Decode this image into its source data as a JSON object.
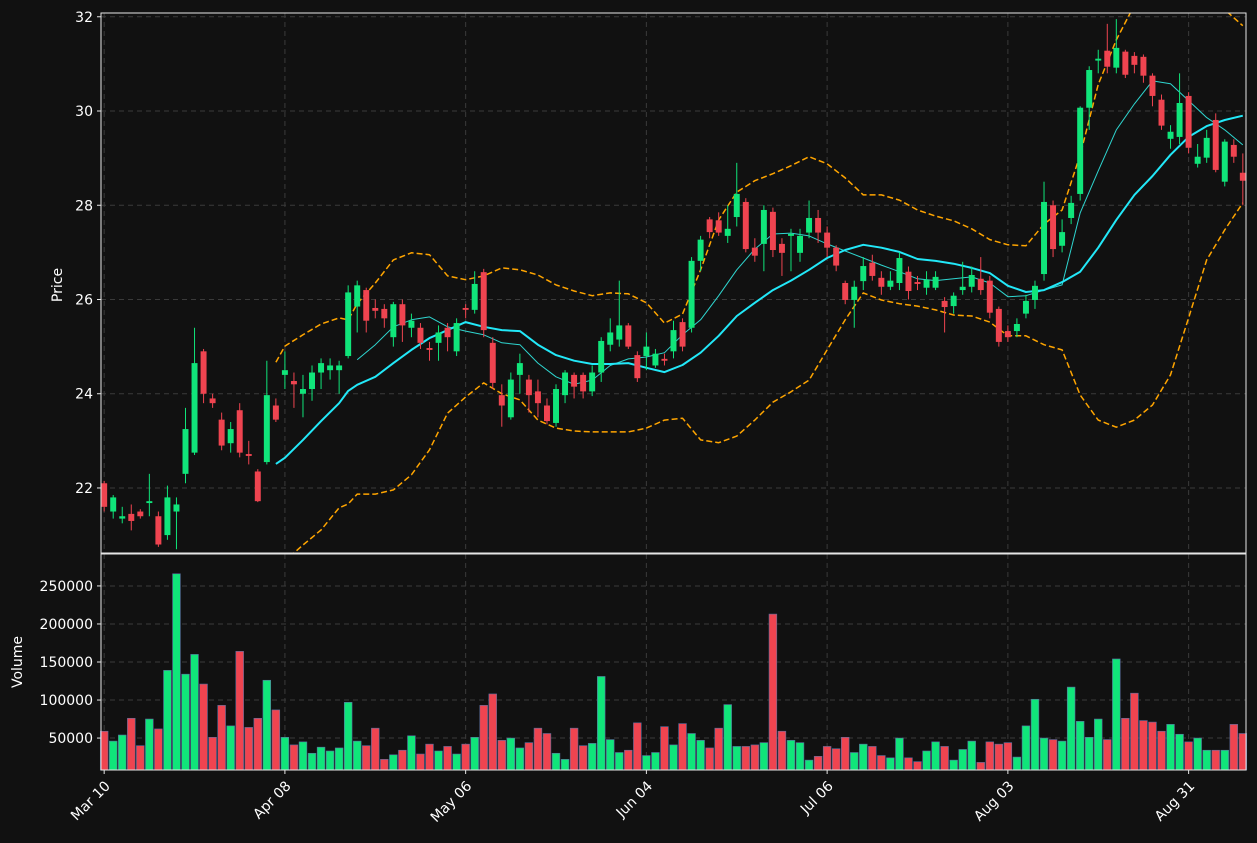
{
  "chart_data": {
    "type": "candlestick",
    "ylabel": "Price",
    "up_color": "#10e57a",
    "down_color": "#ef4450",
    "grid": true,
    "xlim": [
      -0.35,
      126.35
    ],
    "ylim": [
      20.62,
      32.08
    ],
    "yticks": [
      22,
      24,
      26,
      28,
      30,
      32
    ],
    "categories": [
      "Mar 10",
      null,
      null,
      null,
      null,
      null,
      null,
      null,
      null,
      null,
      null,
      null,
      null,
      null,
      null,
      null,
      null,
      null,
      null,
      null,
      "Apr 08",
      null,
      null,
      null,
      null,
      null,
      null,
      null,
      null,
      null,
      null,
      null,
      null,
      null,
      null,
      null,
      null,
      null,
      null,
      null,
      "May 06",
      null,
      null,
      null,
      null,
      null,
      null,
      null,
      null,
      null,
      null,
      null,
      null,
      null,
      null,
      null,
      null,
      null,
      null,
      null,
      "Jun 04",
      null,
      null,
      null,
      null,
      null,
      null,
      null,
      null,
      null,
      null,
      null,
      null,
      null,
      null,
      null,
      null,
      null,
      null,
      null,
      "Jul 06",
      null,
      null,
      null,
      null,
      null,
      null,
      null,
      null,
      null,
      null,
      null,
      null,
      null,
      null,
      null,
      null,
      null,
      null,
      null,
      "Aug 03",
      null,
      null,
      null,
      null,
      null,
      null,
      null,
      null,
      null,
      null,
      null,
      null,
      null,
      null,
      null,
      null,
      null,
      null,
      null,
      "Aug 31",
      null,
      null,
      null,
      null,
      null,
      null
    ],
    "open": [
      22.1,
      21.5,
      21.35,
      21.45,
      21.5,
      21.68,
      21.4,
      21.0,
      21.5,
      22.3,
      22.75,
      24.9,
      23.9,
      23.45,
      22.95,
      23.65,
      22.72,
      22.35,
      22.55,
      23.75,
      24.4,
      24.27,
      24.0,
      24.1,
      24.45,
      24.5,
      24.5,
      24.8,
      25.85,
      26.2,
      25.82,
      25.8,
      25.2,
      25.9,
      25.4,
      25.4,
      24.97,
      25.08,
      25.4,
      24.9,
      25.82,
      25.78,
      26.58,
      25.08,
      23.97,
      23.5,
      24.4,
      24.3,
      24.05,
      23.75,
      23.38,
      23.97,
      24.4,
      24.4,
      24.05,
      24.45,
      25.04,
      25.15,
      25.45,
      24.82,
      24.8,
      24.6,
      24.74,
      24.9,
      25.52,
      25.4,
      26.82,
      27.7,
      27.68,
      27.35,
      27.75,
      28.07,
      27.1,
      27.18,
      27.86,
      27.18,
      27.35,
      26.99,
      27.42,
      27.73,
      27.42,
      27.1,
      26.35,
      25.99,
      26.39,
      26.78,
      26.46,
      26.27,
      26.35,
      26.59,
      26.37,
      26.25,
      26.25,
      25.97,
      25.86,
      26.2,
      26.27,
      26.44,
      26.4,
      25.8,
      25.33,
      25.33,
      25.7,
      25.99,
      26.54,
      28.0,
      27.14,
      27.73,
      28.24,
      30.07,
      31.07,
      31.28,
      30.92,
      31.26,
      31.17,
      31.15,
      30.75,
      30.24,
      29.41,
      29.45,
      30.32,
      28.88,
      29.01,
      29.81,
      28.5,
      29.28,
      28.69
    ],
    "high": [
      22.15,
      21.85,
      21.6,
      21.65,
      21.55,
      22.3,
      21.5,
      22.05,
      21.8,
      23.7,
      25.4,
      24.95,
      24.0,
      23.6,
      23.4,
      23.8,
      23.0,
      22.4,
      24.7,
      23.9,
      24.9,
      24.45,
      24.4,
      24.6,
      24.75,
      24.75,
      24.7,
      26.3,
      26.4,
      26.25,
      26.0,
      25.9,
      25.95,
      26.0,
      25.7,
      25.5,
      25.1,
      25.45,
      25.5,
      25.6,
      25.9,
      26.6,
      26.65,
      25.2,
      24.2,
      24.45,
      24.85,
      24.4,
      24.3,
      23.9,
      24.2,
      24.5,
      24.45,
      24.45,
      24.6,
      25.2,
      25.6,
      26.4,
      25.5,
      24.9,
      25.3,
      24.95,
      24.85,
      25.55,
      25.6,
      26.9,
      27.35,
      27.75,
      27.85,
      28.0,
      28.9,
      28.15,
      27.3,
      28.0,
      27.95,
      27.3,
      27.5,
      27.5,
      28.1,
      27.9,
      27.55,
      27.15,
      26.4,
      26.4,
      26.9,
      26.95,
      26.6,
      26.6,
      27.0,
      26.7,
      26.5,
      26.6,
      26.6,
      26.05,
      26.15,
      26.8,
      26.7,
      26.9,
      26.5,
      25.85,
      25.45,
      25.6,
      26.1,
      26.4,
      28.5,
      28.1,
      27.7,
      28.2,
      30.1,
      30.95,
      31.3,
      31.85,
      31.95,
      31.3,
      31.25,
      31.2,
      30.8,
      30.35,
      29.7,
      30.8,
      30.4,
      29.3,
      29.6,
      29.95,
      29.4,
      29.4,
      29.1
    ],
    "low": [
      21.5,
      21.35,
      21.25,
      21.1,
      21.35,
      21.4,
      20.75,
      20.9,
      20.7,
      22.1,
      22.7,
      23.8,
      23.7,
      22.8,
      22.75,
      22.65,
      22.5,
      21.7,
      22.5,
      23.4,
      24.1,
      23.7,
      23.5,
      23.85,
      24.1,
      24.3,
      24.0,
      24.75,
      25.3,
      25.3,
      25.6,
      25.4,
      25.0,
      25.1,
      25.2,
      24.95,
      24.7,
      24.7,
      24.9,
      24.8,
      25.6,
      25.7,
      25.2,
      24.1,
      23.3,
      23.45,
      24.0,
      23.6,
      23.5,
      23.35,
      23.3,
      23.8,
      23.9,
      23.9,
      23.95,
      24.25,
      24.9,
      25.0,
      24.95,
      24.25,
      24.5,
      24.55,
      24.6,
      24.75,
      24.9,
      25.3,
      26.6,
      27.3,
      27.35,
      27.2,
      27.55,
      27.0,
      26.8,
      26.6,
      26.9,
      26.5,
      26.6,
      26.8,
      27.3,
      27.2,
      26.9,
      26.6,
      25.9,
      25.4,
      26.2,
      26.4,
      26.1,
      26.2,
      26.2,
      26.0,
      26.2,
      26.1,
      26.2,
      25.3,
      25.7,
      26.1,
      26.15,
      26.1,
      25.6,
      25.0,
      25.1,
      25.2,
      25.6,
      25.8,
      26.4,
      26.9,
      27.0,
      27.6,
      28.1,
      29.6,
      30.8,
      30.8,
      30.8,
      30.7,
      30.8,
      30.6,
      30.1,
      29.6,
      29.2,
      29.3,
      29.1,
      28.8,
      28.9,
      28.7,
      28.4,
      28.9,
      28.0
    ],
    "close": [
      21.6,
      21.8,
      21.4,
      21.3,
      21.4,
      21.72,
      20.8,
      21.8,
      21.65,
      23.25,
      24.65,
      24.0,
      23.8,
      22.9,
      23.25,
      22.75,
      22.68,
      21.72,
      23.97,
      23.45,
      24.5,
      24.2,
      24.1,
      24.45,
      24.65,
      24.6,
      24.6,
      26.15,
      26.3,
      25.55,
      25.76,
      25.6,
      25.9,
      25.45,
      25.55,
      25.08,
      24.93,
      25.3,
      25.2,
      25.5,
      25.78,
      26.33,
      25.35,
      24.23,
      23.75,
      24.3,
      24.65,
      23.97,
      23.8,
      23.42,
      24.1,
      24.45,
      24.15,
      24.05,
      24.45,
      25.12,
      25.3,
      25.45,
      25.0,
      24.33,
      25.0,
      24.85,
      24.7,
      25.35,
      25.0,
      26.82,
      27.27,
      27.43,
      27.42,
      27.5,
      28.24,
      27.07,
      26.93,
      27.9,
      27.05,
      26.99,
      27.39,
      27.35,
      27.73,
      27.42,
      27.1,
      26.72,
      25.99,
      26.27,
      26.71,
      26.5,
      26.27,
      26.4,
      26.88,
      26.18,
      26.33,
      26.42,
      26.48,
      25.84,
      26.08,
      26.27,
      26.52,
      26.2,
      25.72,
      25.1,
      25.2,
      25.48,
      25.97,
      26.29,
      28.07,
      27.07,
      27.43,
      28.05,
      30.07,
      30.87,
      31.11,
      30.94,
      31.34,
      30.77,
      30.98,
      30.75,
      30.32,
      29.69,
      29.56,
      30.17,
      29.22,
      29.03,
      29.43,
      28.75,
      29.35,
      29.03,
      28.52
    ],
    "line_x": [
      19,
      20,
      22,
      24,
      26,
      27,
      28,
      30,
      32,
      34,
      36,
      38,
      40,
      42,
      44,
      46,
      48,
      50,
      52,
      54,
      56,
      58,
      60,
      62,
      64,
      66,
      68,
      70,
      72,
      74,
      76,
      78,
      80,
      82,
      84,
      86,
      88,
      90,
      92,
      94,
      96,
      98,
      100,
      102,
      104,
      106,
      108,
      110,
      112,
      114,
      116,
      118,
      120,
      122,
      124,
      126
    ],
    "lines": [
      {
        "color": "#2fd6d0",
        "width": 1,
        "dash": false,
        "values": [
          null,
          null,
          null,
          null,
          null,
          null,
          24.72,
          25.04,
          25.42,
          25.57,
          25.63,
          25.42,
          25.33,
          25.25,
          25.08,
          25.04,
          24.65,
          24.36,
          24.2,
          24.29,
          24.6,
          24.74,
          24.78,
          24.87,
          25.25,
          25.57,
          26.08,
          26.63,
          27.07,
          27.39,
          27.41,
          27.35,
          27.18,
          27.03,
          26.88,
          26.73,
          26.59,
          26.44,
          26.4,
          26.44,
          26.48,
          26.35,
          26.06,
          26.08,
          26.2,
          26.31,
          27.84,
          28.73,
          29.6,
          30.15,
          30.64,
          30.58,
          30.22,
          29.86,
          29.6,
          29.28
        ]
      },
      {
        "color": "#22e8f8",
        "width": 2,
        "dash": false,
        "values": [
          22.51,
          22.64,
          23.02,
          23.42,
          23.8,
          24.06,
          24.19,
          24.36,
          24.65,
          24.93,
          25.18,
          25.35,
          25.52,
          25.42,
          25.35,
          25.33,
          25.04,
          24.82,
          24.7,
          24.63,
          24.63,
          24.65,
          24.55,
          24.46,
          24.61,
          24.87,
          25.23,
          25.65,
          25.93,
          26.2,
          26.4,
          26.63,
          26.88,
          27.05,
          27.16,
          27.1,
          27.01,
          26.86,
          26.82,
          26.76,
          26.67,
          26.56,
          26.29,
          26.16,
          26.2,
          26.37,
          26.59,
          27.1,
          27.69,
          28.22,
          28.62,
          29.07,
          29.45,
          29.68,
          29.81,
          29.9
        ]
      },
      {
        "color": "#ffa500",
        "width": 1.5,
        "dash": true,
        "values": [
          24.67,
          25.01,
          25.25,
          25.48,
          25.61,
          25.57,
          25.91,
          26.35,
          26.84,
          26.99,
          26.95,
          26.5,
          26.42,
          26.5,
          26.67,
          26.63,
          26.52,
          26.31,
          26.18,
          26.08,
          26.14,
          26.12,
          25.93,
          25.5,
          25.69,
          26.63,
          27.69,
          28.28,
          28.52,
          28.67,
          28.84,
          29.03,
          28.88,
          28.58,
          28.22,
          28.22,
          28.11,
          27.9,
          27.77,
          27.67,
          27.5,
          27.27,
          27.16,
          27.14,
          27.6,
          27.9,
          29.07,
          30.56,
          31.51,
          32.25,
          32.6,
          32.7,
          32.8,
          32.6,
          32.15,
          31.81
        ]
      },
      {
        "color": "#ffa500",
        "width": 1.5,
        "dash": true,
        "values": [
          20.3,
          20.45,
          20.79,
          21.11,
          21.58,
          21.66,
          21.87,
          21.87,
          21.96,
          22.28,
          22.81,
          23.59,
          23.93,
          24.23,
          24.0,
          23.87,
          23.44,
          23.27,
          23.21,
          23.19,
          23.19,
          23.19,
          23.27,
          23.44,
          23.48,
          23.02,
          22.96,
          23.1,
          23.44,
          23.82,
          24.04,
          24.29,
          24.93,
          25.57,
          26.14,
          25.99,
          25.91,
          25.86,
          25.78,
          25.67,
          25.65,
          25.52,
          25.23,
          25.23,
          25.04,
          24.93,
          23.97,
          23.44,
          23.29,
          23.44,
          23.76,
          24.4,
          25.61,
          26.84,
          27.48,
          28.05
        ]
      }
    ],
    "volume": {
      "ylabel": "Volume",
      "ylim": [
        8000,
        292000
      ],
      "yticks": [
        50000,
        100000,
        150000,
        200000,
        250000
      ],
      "values": [
        59000,
        46000,
        54000,
        76000,
        40000,
        75000,
        62000,
        139000,
        266000,
        134000,
        160000,
        121000,
        51000,
        93000,
        66000,
        164000,
        64000,
        76000,
        126000,
        87000,
        51000,
        41000,
        45000,
        30000,
        38000,
        33000,
        37000,
        97000,
        46000,
        40000,
        63000,
        22000,
        28000,
        34000,
        53000,
        29000,
        42000,
        33000,
        39000,
        29000,
        42000,
        51000,
        93000,
        108000,
        47000,
        50000,
        37000,
        44000,
        63000,
        56000,
        30000,
        22000,
        63000,
        40000,
        43000,
        131000,
        48000,
        31000,
        34000,
        70000,
        27000,
        31000,
        65000,
        41000,
        69000,
        56000,
        47000,
        37000,
        63000,
        94000,
        39000,
        39000,
        41000,
        44000,
        213000,
        59000,
        47000,
        44000,
        21000,
        26000,
        39000,
        36000,
        51000,
        31000,
        42000,
        39000,
        27000,
        24000,
        50000,
        24000,
        19000,
        33000,
        45000,
        39000,
        21000,
        35000,
        46000,
        18000,
        45000,
        42000,
        44000,
        25000,
        66000,
        101000,
        50000,
        48000,
        46000,
        117000,
        72000,
        51000,
        75000,
        48000,
        154000,
        76000,
        109000,
        73000,
        71000,
        59000,
        68000,
        55000,
        45000,
        50000,
        34000,
        34000,
        34000,
        68000,
        56000
      ]
    }
  }
}
